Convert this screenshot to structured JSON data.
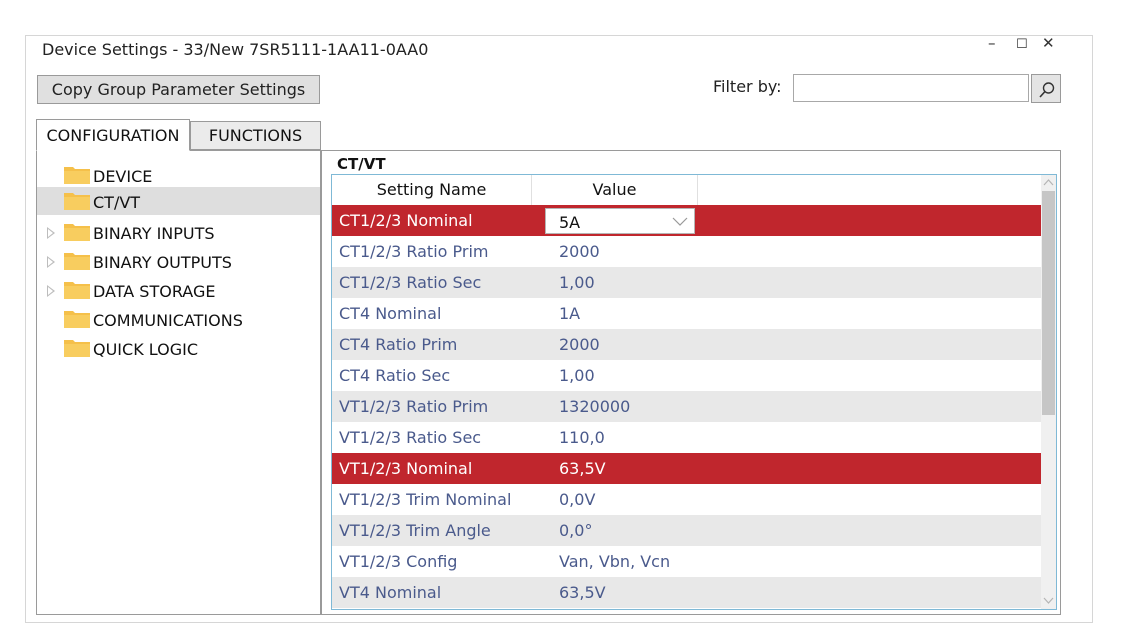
{
  "window": {
    "title": "Device Settings - 33/New 7SR5111-1AA11-0AA0",
    "minimize_glyph": "–",
    "maximize_glyph": "☐",
    "close_glyph": "✕"
  },
  "toolbar": {
    "copy_label": "Copy Group Parameter Settings",
    "filter_label": "Filter by:",
    "filter_value": "",
    "filter_icon": "search-icon"
  },
  "tabs": [
    {
      "label": "CONFIGURATION",
      "active": true
    },
    {
      "label": "FUNCTIONS",
      "active": false
    }
  ],
  "tree": {
    "items": [
      {
        "label": "DEVICE",
        "expandable": false,
        "selected": false
      },
      {
        "label": "CT/VT",
        "expandable": false,
        "selected": true
      },
      {
        "label": "BINARY INPUTS",
        "expandable": true,
        "selected": false
      },
      {
        "label": "BINARY OUTPUTS",
        "expandable": true,
        "selected": false
      },
      {
        "label": "DATA STORAGE",
        "expandable": true,
        "selected": false
      },
      {
        "label": "COMMUNICATIONS",
        "expandable": false,
        "selected": false
      },
      {
        "label": "QUICK LOGIC",
        "expandable": false,
        "selected": false
      }
    ],
    "folder_color": "#f5c04a"
  },
  "main": {
    "section_title": "CT/VT",
    "columns": [
      "Setting Name",
      "Value"
    ],
    "rows": [
      {
        "name": "CT1/2/3 Nominal",
        "value": "5A",
        "selected": true,
        "editor": "combo"
      },
      {
        "name": "CT1/2/3 Ratio Prim",
        "value": "2000"
      },
      {
        "name": "CT1/2/3 Ratio Sec",
        "value": "1,00"
      },
      {
        "name": "CT4 Nominal",
        "value": "1A"
      },
      {
        "name": "CT4 Ratio Prim",
        "value": "2000"
      },
      {
        "name": "CT4 Ratio Sec",
        "value": "1,00"
      },
      {
        "name": "VT1/2/3 Ratio Prim",
        "value": "1320000"
      },
      {
        "name": "VT1/2/3 Ratio Sec",
        "value": "110,0"
      },
      {
        "name": "VT1/2/3 Nominal",
        "value": "63,5V",
        "selected": true
      },
      {
        "name": "VT1/2/3 Trim Nominal",
        "value": "0,0V"
      },
      {
        "name": "VT1/2/3 Trim Angle",
        "value": "0,0°"
      },
      {
        "name": "VT1/2/3 Config",
        "value": "Van, Vbn, Vcn"
      },
      {
        "name": "VT4 Nominal",
        "value": "63,5V"
      }
    ]
  },
  "colors": {
    "selected_row": "#c0262d",
    "setting_text": "#4a5a8c",
    "alt_row": "#e8e8e8",
    "grid_border": "#7fb9d6"
  }
}
